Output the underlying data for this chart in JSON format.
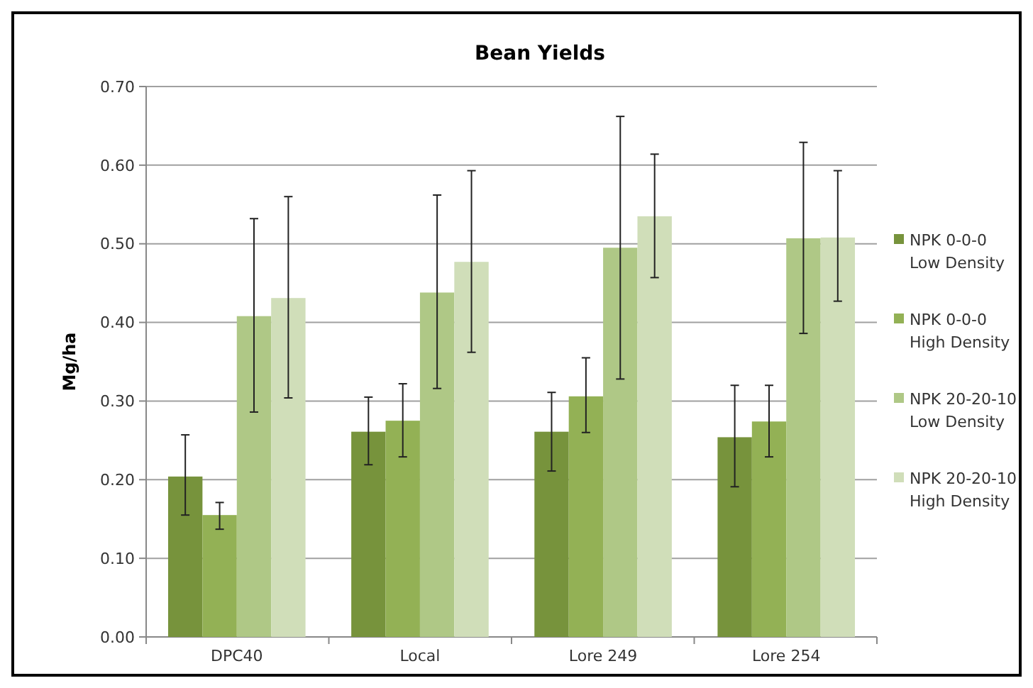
{
  "chart_data": {
    "type": "bar",
    "title": "Bean Yields",
    "ylabel": "Mg/ha",
    "categories": [
      "DPC40",
      "Local",
      "Lore 249",
      "Lore 254"
    ],
    "series": [
      {
        "name": "NPK 0-0-0 Low Density",
        "color": "#77933c",
        "values": [
          0.204,
          0.261,
          0.261,
          0.254
        ],
        "errors": [
          [
            0.155,
            0.257
          ],
          [
            0.219,
            0.305
          ],
          [
            0.211,
            0.311
          ],
          [
            0.191,
            0.32
          ]
        ]
      },
      {
        "name": "NPK 0-0-0 High Density",
        "color": "#93b155",
        "values": [
          0.155,
          0.275,
          0.306,
          0.274
        ],
        "errors": [
          [
            0.137,
            0.171
          ],
          [
            0.229,
            0.322
          ],
          [
            0.26,
            0.355
          ],
          [
            0.229,
            0.32
          ]
        ]
      },
      {
        "name": "NPK 20-20-10 Low Density",
        "color": "#afc886",
        "values": [
          0.408,
          0.438,
          0.495,
          0.507
        ],
        "errors": [
          [
            0.286,
            0.532
          ],
          [
            0.316,
            0.562
          ],
          [
            0.328,
            0.662
          ],
          [
            0.386,
            0.629
          ]
        ]
      },
      {
        "name": "NPK 20-20-10 High Density",
        "color": "#d0deb9",
        "values": [
          0.431,
          0.477,
          0.535,
          0.508
        ],
        "errors": [
          [
            0.304,
            0.56
          ],
          [
            0.362,
            0.593
          ],
          [
            0.457,
            0.614
          ],
          [
            0.427,
            0.593
          ]
        ]
      }
    ],
    "ylim": [
      0,
      0.7
    ],
    "yticks": [
      {
        "value": 0,
        "label": "0.00"
      },
      {
        "value": 0.1,
        "label": "0.10"
      },
      {
        "value": 0.2,
        "label": "0.20"
      },
      {
        "value": 0.3,
        "label": "0.30"
      },
      {
        "value": 0.4,
        "label": "0.40"
      },
      {
        "value": 0.5,
        "label": "0.50"
      },
      {
        "value": 0.6,
        "label": "0.60"
      },
      {
        "value": 0.7,
        "label": "0.70"
      }
    ],
    "grid": "y",
    "legend": "right"
  }
}
